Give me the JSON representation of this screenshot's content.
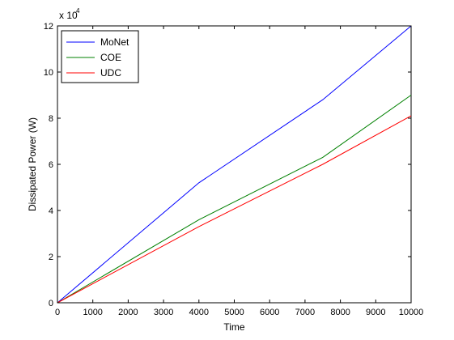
{
  "chart_data": {
    "type": "line",
    "xlabel": "Time",
    "ylabel": "Dissipated Power (W)",
    "xlim": [
      0,
      10000
    ],
    "ylim": [
      0,
      120000
    ],
    "x_ticks": [
      "0",
      "1000",
      "2000",
      "3000",
      "4000",
      "5000",
      "6000",
      "7000",
      "8000",
      "9000",
      "10000"
    ],
    "y_ticks": [
      "0",
      "2",
      "4",
      "6",
      "8",
      "10",
      "12"
    ],
    "y_exponent": {
      "base": "x 10",
      "power": "4"
    },
    "grid": false,
    "legend_position": "top-left",
    "series": [
      {
        "name": "MoNet",
        "color": "#0000ff",
        "x": [
          0,
          4000,
          7500,
          10000
        ],
        "y": [
          0,
          52000,
          88000,
          120000
        ]
      },
      {
        "name": "COE",
        "color": "#008000",
        "x": [
          0,
          4000,
          7500,
          10000
        ],
        "y": [
          0,
          36000,
          63000,
          90000
        ]
      },
      {
        "name": "UDC",
        "color": "#ff0000",
        "x": [
          0,
          4000,
          7500,
          10000
        ],
        "y": [
          0,
          33000,
          60000,
          81000
        ]
      }
    ]
  }
}
